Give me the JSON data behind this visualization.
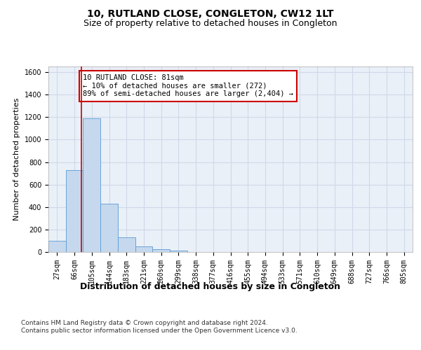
{
  "title": "10, RUTLAND CLOSE, CONGLETON, CW12 1LT",
  "subtitle": "Size of property relative to detached houses in Congleton",
  "xlabel": "Distribution of detached houses by size in Congleton",
  "ylabel": "Number of detached properties",
  "categories": [
    "27sqm",
    "66sqm",
    "105sqm",
    "144sqm",
    "183sqm",
    "221sqm",
    "260sqm",
    "299sqm",
    "338sqm",
    "377sqm",
    "416sqm",
    "455sqm",
    "494sqm",
    "533sqm",
    "571sqm",
    "610sqm",
    "649sqm",
    "688sqm",
    "727sqm",
    "766sqm",
    "805sqm"
  ],
  "values": [
    100,
    730,
    1190,
    430,
    130,
    50,
    25,
    15,
    0,
    0,
    0,
    0,
    0,
    0,
    0,
    0,
    0,
    0,
    0,
    0,
    0
  ],
  "bar_color": "#c5d8ed",
  "bar_edge_color": "#5b9bd5",
  "grid_color": "#d0d8e8",
  "background_color": "#ffffff",
  "property_line_color": "#cc0000",
  "annotation_text": "10 RUTLAND CLOSE: 81sqm\n← 10% of detached houses are smaller (272)\n89% of semi-detached houses are larger (2,404) →",
  "annotation_box_color": "#ffffff",
  "annotation_box_edge": "#cc0000",
  "ylim": [
    0,
    1650
  ],
  "yticks": [
    0,
    200,
    400,
    600,
    800,
    1000,
    1200,
    1400,
    1600
  ],
  "footer": "Contains HM Land Registry data © Crown copyright and database right 2024.\nContains public sector information licensed under the Open Government Licence v3.0.",
  "title_fontsize": 10,
  "subtitle_fontsize": 9,
  "xlabel_fontsize": 9,
  "ylabel_fontsize": 8,
  "tick_fontsize": 7,
  "annotation_fontsize": 7.5,
  "footer_fontsize": 6.5
}
